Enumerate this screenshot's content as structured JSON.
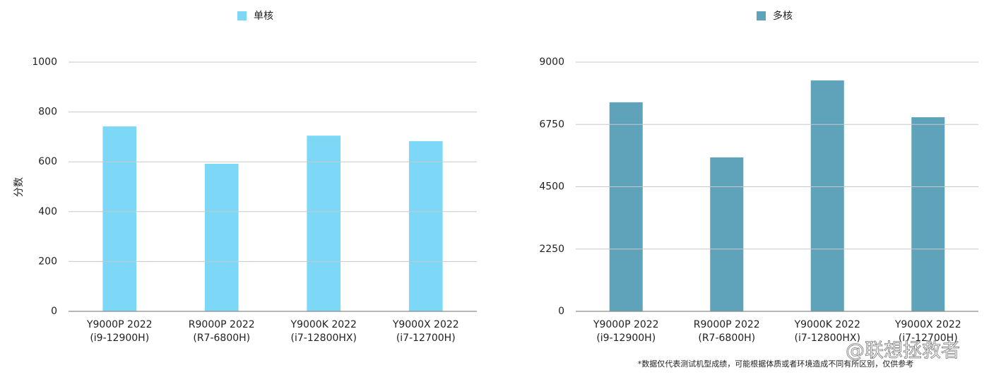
{
  "chart_data": [
    {
      "type": "bar",
      "legend": "单核",
      "y_label": "分数",
      "color": "#7dd8f8",
      "categories": [
        [
          "Y9000P 2022",
          "(i9-12900H)"
        ],
        [
          "R9000P 2022",
          "(R7-6800H)"
        ],
        [
          "Y9000K 2022",
          "(i7-12800HX)"
        ],
        [
          "Y9000X 2022",
          "(i7-12700H)"
        ]
      ],
      "values": [
        742,
        592,
        705,
        683
      ],
      "ylim": [
        0,
        1000
      ],
      "yticks": [
        0,
        200,
        400,
        600,
        800,
        1000
      ],
      "grid": true
    },
    {
      "type": "bar",
      "legend": "多核",
      "color": "#5ea3ba",
      "categories": [
        [
          "Y9000P 2022",
          "(i9-12900H)"
        ],
        [
          "R9000P 2022",
          "(R7-6800H)"
        ],
        [
          "Y9000K 2022",
          "(i7-12800HX)"
        ],
        [
          "Y9000X 2022",
          "(i7-12700H)"
        ]
      ],
      "values": [
        7550,
        5560,
        8340,
        7010
      ],
      "ylim": [
        0,
        9000
      ],
      "yticks": [
        0,
        2250,
        4500,
        6750,
        9000
      ],
      "grid": true
    }
  ],
  "footnote": "*数据仅代表测试机型成绩，可能根据体质或者环境造成不同有所区别，仅供参考",
  "watermark": "@联想拯救者"
}
